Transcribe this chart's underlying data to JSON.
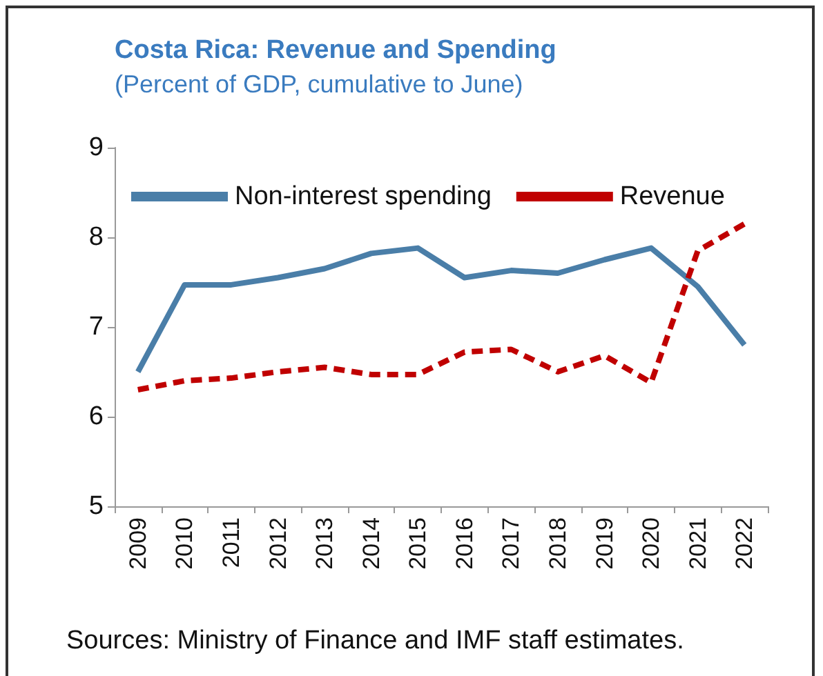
{
  "chart_data": {
    "type": "line",
    "title": "Costa Rica: Revenue and Spending",
    "subtitle": "(Percent of GDP, cumulative to June)",
    "categories": [
      "2009",
      "2010",
      "2011",
      "2012",
      "2013",
      "2014",
      "2015",
      "2016",
      "2017",
      "2018",
      "2019",
      "2020",
      "2021",
      "2022"
    ],
    "series": [
      {
        "name": "Non-interest spending",
        "color": "#4a7ea8",
        "line_style": "solid",
        "values": [
          6.5,
          7.47,
          7.47,
          7.55,
          7.65,
          7.82,
          7.88,
          7.55,
          7.63,
          7.6,
          7.75,
          7.88,
          7.45,
          6.8
        ]
      },
      {
        "name": "Revenue",
        "color": "#c00000",
        "line_style": "dashed",
        "values": [
          6.3,
          6.4,
          6.43,
          6.5,
          6.55,
          6.47,
          6.47,
          6.72,
          6.75,
          6.5,
          6.68,
          6.38,
          7.85,
          8.15
        ]
      }
    ],
    "ylim": [
      5,
      9
    ],
    "yticks": [
      5,
      6,
      7,
      8,
      9
    ],
    "grid": false,
    "legend": "top",
    "marker": "none",
    "annotations": [
      "Sources: Ministry of Finance and IMF staff estimates."
    ]
  }
}
